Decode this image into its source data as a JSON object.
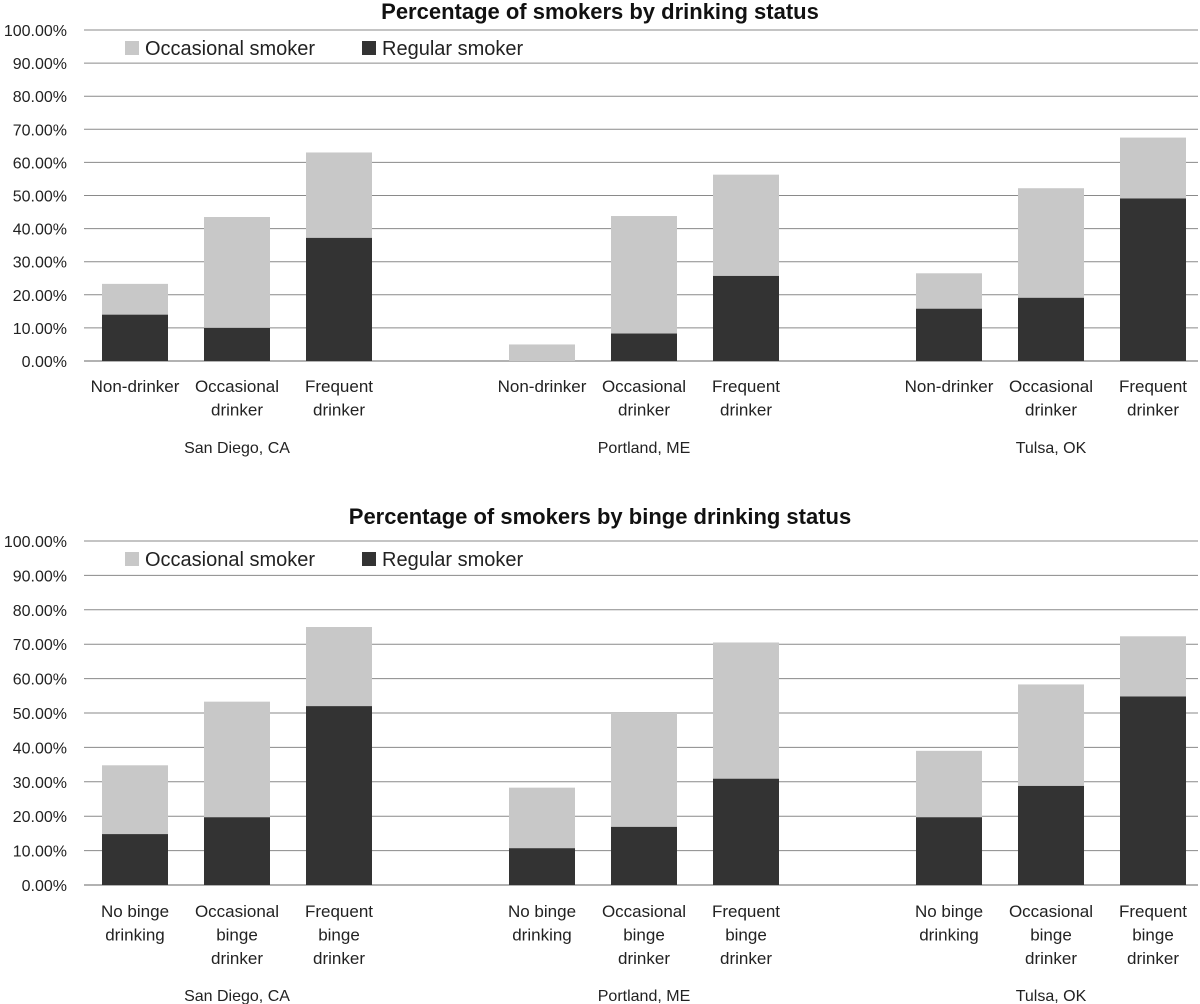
{
  "colors": {
    "occasional": "#c8c8c8",
    "regular": "#333333"
  },
  "chart_data": [
    {
      "type": "bar",
      "stacked": true,
      "title": "Percentage of smokers by drinking status",
      "legend": [
        "Occasional smoker",
        "Regular smoker"
      ],
      "legend_position": "top-left",
      "ylim": [
        0,
        100
      ],
      "y_ticks": [
        "0.00%",
        "10.00%",
        "20.00%",
        "30.00%",
        "40.00%",
        "50.00%",
        "60.00%",
        "70.00%",
        "80.00%",
        "90.00%",
        "100.00%"
      ],
      "groups": [
        {
          "label": "San Diego, CA",
          "bars": [
            {
              "label": [
                "Non-drinker"
              ],
              "regular": 14,
              "total": 23.3
            },
            {
              "label": [
                "Occasional",
                "drinker"
              ],
              "regular": 10,
              "total": 43.5
            },
            {
              "label": [
                "Frequent",
                "drinker"
              ],
              "regular": 37.2,
              "total": 63
            }
          ]
        },
        {
          "label": "Portland, ME",
          "bars": [
            {
              "label": [
                "Non-drinker"
              ],
              "regular": 0,
              "total": 5
            },
            {
              "label": [
                "Occasional",
                "drinker"
              ],
              "regular": 8.3,
              "total": 43.8
            },
            {
              "label": [
                "Frequent",
                "drinker"
              ],
              "regular": 25.7,
              "total": 56.3
            }
          ]
        },
        {
          "label": "Tulsa, OK",
          "bars": [
            {
              "label": [
                "Non-drinker"
              ],
              "regular": 15.8,
              "total": 26.5
            },
            {
              "label": [
                "Occasional",
                "drinker"
              ],
              "regular": 19.1,
              "total": 52.2
            },
            {
              "label": [
                "Frequent",
                "drinker"
              ],
              "regular": 49.1,
              "total": 67.5
            }
          ]
        }
      ]
    },
    {
      "type": "bar",
      "stacked": true,
      "title": "Percentage of smokers by binge drinking status",
      "legend": [
        "Occasional smoker",
        "Regular smoker"
      ],
      "legend_position": "top-left",
      "ylim": [
        0,
        100
      ],
      "y_ticks": [
        "0.00%",
        "10.00%",
        "20.00%",
        "30.00%",
        "40.00%",
        "50.00%",
        "60.00%",
        "70.00%",
        "80.00%",
        "90.00%",
        "100.00%"
      ],
      "groups": [
        {
          "label": "San Diego, CA",
          "bars": [
            {
              "label": [
                "No binge",
                "drinking"
              ],
              "regular": 14.8,
              "total": 34.8
            },
            {
              "label": [
                "Occasional",
                "binge",
                "drinker"
              ],
              "regular": 19.7,
              "total": 53.3
            },
            {
              "label": [
                "Frequent",
                "binge",
                "drinker"
              ],
              "regular": 52,
              "total": 75
            }
          ]
        },
        {
          "label": "Portland, ME",
          "bars": [
            {
              "label": [
                "No binge",
                "drinking"
              ],
              "regular": 10.7,
              "total": 28.3
            },
            {
              "label": [
                "Occasional",
                "binge",
                "drinker"
              ],
              "regular": 16.9,
              "total": 50
            },
            {
              "label": [
                "Frequent",
                "binge",
                "drinker"
              ],
              "regular": 30.9,
              "total": 70.5
            }
          ]
        },
        {
          "label": "Tulsa, OK",
          "bars": [
            {
              "label": [
                "No binge",
                "drinking"
              ],
              "regular": 19.7,
              "total": 39
            },
            {
              "label": [
                "Occasional",
                "binge",
                "drinker"
              ],
              "regular": 28.8,
              "total": 58.3
            },
            {
              "label": [
                "Frequent",
                "binge",
                "drinker"
              ],
              "regular": 54.8,
              "total": 72.3
            }
          ]
        }
      ]
    }
  ]
}
